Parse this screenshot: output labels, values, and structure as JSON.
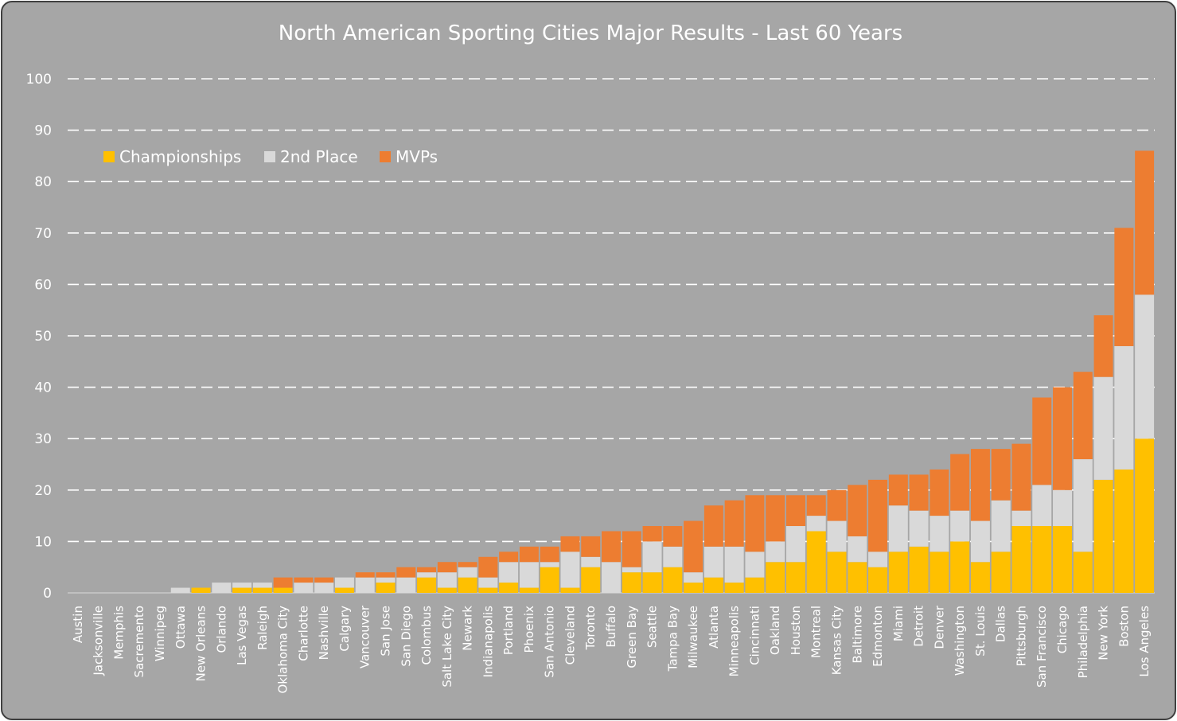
{
  "chart_data": {
    "type": "bar",
    "stacked": true,
    "title": "North American Sporting Cities Major Results - Last 60 Years",
    "xlabel": "",
    "ylabel": "",
    "ylim": [
      0,
      100
    ],
    "yticks": [
      0,
      10,
      20,
      30,
      40,
      50,
      60,
      70,
      80,
      90,
      100
    ],
    "grid": true,
    "legend_position": "top-left",
    "categories": [
      "Austin",
      "Jacksonville",
      "Memphis",
      "Sacremento",
      "Winnipeg",
      "Ottawa",
      "New Orleans",
      "Orlando",
      "Las Vegas",
      "Raleigh",
      "Oklahoma City",
      "Charlotte",
      "Nashville",
      "Calgary",
      "Vancouver",
      "San Jose",
      "San Diego",
      "Colombus",
      "Salt Lake City",
      "Newark",
      "Indianapolis",
      "Portland",
      "Phoenix",
      "San Antonio",
      "Cleveland",
      "Toronto",
      "Buffalo",
      "Green Bay",
      "Seattle",
      "Tampa Bay",
      "Milwaukee",
      "Atlanta",
      "Minneapolis",
      "Cincinnati",
      "Oakland",
      "Houston",
      "Montreal",
      "Kansas City",
      "Baltimore",
      "Edmonton",
      "Miami",
      "Detroit",
      "Denver",
      "Washington",
      "St. Louis",
      "Dallas",
      "Pittsburgh",
      "San Francisco",
      "Chicago",
      "Philadelphia",
      "New York",
      "Boston",
      "Los Angeles"
    ],
    "series": [
      {
        "name": "Championships",
        "color": "#ffc000",
        "values": [
          0,
          0,
          0,
          0,
          0,
          0,
          1,
          0,
          1,
          1,
          1,
          0,
          0,
          1,
          0,
          2,
          0,
          3,
          1,
          3,
          1,
          2,
          1,
          5,
          1,
          5,
          0,
          4,
          4,
          5,
          2,
          3,
          2,
          3,
          6,
          6,
          12,
          8,
          6,
          5,
          8,
          9,
          8,
          10,
          6,
          8,
          13,
          13,
          13,
          8,
          22,
          24,
          30
        ]
      },
      {
        "name": "2nd Place",
        "color": "#d9d9d9",
        "values": [
          0,
          0,
          0,
          0,
          0,
          1,
          0,
          2,
          1,
          1,
          0,
          2,
          2,
          2,
          3,
          1,
          3,
          1,
          3,
          2,
          2,
          4,
          5,
          1,
          7,
          2,
          6,
          1,
          6,
          4,
          2,
          6,
          7,
          5,
          4,
          7,
          3,
          6,
          5,
          3,
          9,
          7,
          7,
          6,
          8,
          10,
          3,
          8,
          7,
          18,
          20,
          24,
          28
        ]
      },
      {
        "name": "MVPs",
        "color": "#ed7d31",
        "values": [
          0,
          0,
          0,
          0,
          0,
          0,
          0,
          0,
          0,
          0,
          2,
          1,
          1,
          0,
          1,
          1,
          2,
          1,
          2,
          1,
          4,
          2,
          3,
          3,
          3,
          4,
          6,
          7,
          3,
          4,
          10,
          8,
          9,
          11,
          9,
          6,
          4,
          6,
          10,
          14,
          6,
          7,
          9,
          11,
          14,
          10,
          13,
          17,
          20,
          17,
          12,
          23,
          28
        ]
      }
    ]
  }
}
